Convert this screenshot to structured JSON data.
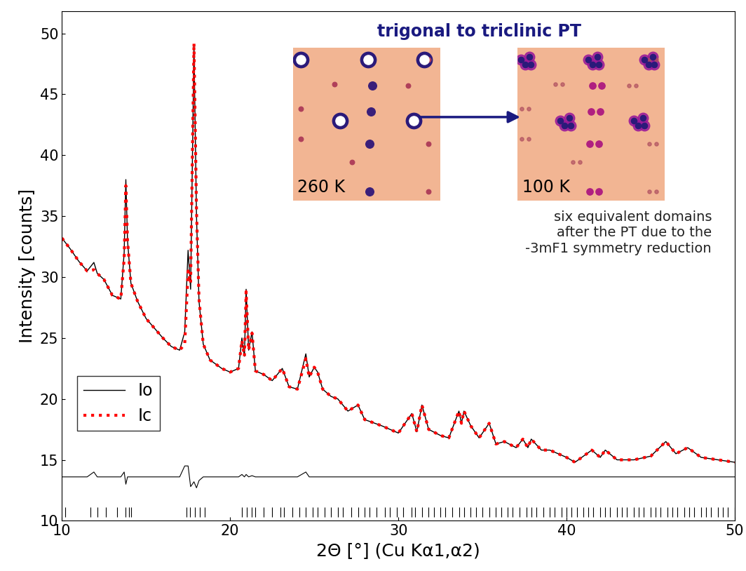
{
  "chart_data": {
    "type": "line",
    "x_label": "2Θ [°] (Cu Kα1,α2)",
    "y_label": "Intensity [counts]",
    "xlim": [
      10,
      50
    ],
    "xticks": [
      10,
      20,
      30,
      40,
      50
    ],
    "ylim": [
      10,
      51.8
    ],
    "yticks": [
      10,
      15,
      20,
      25,
      30,
      35,
      40,
      45,
      50
    ],
    "grid": false,
    "legend": "lower left",
    "x": [
      10.0,
      10.5,
      11.0,
      11.5,
      11.9,
      12.1,
      12.5,
      13.0,
      13.5,
      13.7,
      13.8,
      13.9,
      14.1,
      14.5,
      15.0,
      15.5,
      16.0,
      16.5,
      17.0,
      17.3,
      17.5,
      17.65,
      17.85,
      18.0,
      18.15,
      18.4,
      18.8,
      19.5,
      20.0,
      20.5,
      20.7,
      20.85,
      20.95,
      21.1,
      21.3,
      21.5,
      22.0,
      22.5,
      23.1,
      23.5,
      24.0,
      24.5,
      24.7,
      25.0,
      25.2,
      25.5,
      26.0,
      26.4,
      27.0,
      27.6,
      28.0,
      29.0,
      30.0,
      30.8,
      31.1,
      31.4,
      31.8,
      32.5,
      33.0,
      33.6,
      33.75,
      33.9,
      34.3,
      34.8,
      35.4,
      35.8,
      36.3,
      37.0,
      37.4,
      37.7,
      37.9,
      38.5,
      39.0,
      40.0,
      40.5,
      41.5,
      42.0,
      42.3,
      43.0,
      44.0,
      45.0,
      45.9,
      46.5,
      47.2,
      48.0,
      49.0,
      50.0
    ],
    "series": [
      {
        "name": "Io",
        "color": "#000000",
        "line_style": "solid",
        "values": [
          33.2,
          32.3,
          31.3,
          30.5,
          31.2,
          30.3,
          29.8,
          28.5,
          28.2,
          32.0,
          38.0,
          33.0,
          29.5,
          28.0,
          26.6,
          25.8,
          25.0,
          24.3,
          24.0,
          25.5,
          32.2,
          29.0,
          49.0,
          35.0,
          28.0,
          24.5,
          23.2,
          22.5,
          22.2,
          22.5,
          25.0,
          23.5,
          29.0,
          24.0,
          25.5,
          22.3,
          22.0,
          21.5,
          22.5,
          21.0,
          20.8,
          23.7,
          21.8,
          22.6,
          22.2,
          20.8,
          20.2,
          20.0,
          19.0,
          19.5,
          18.3,
          17.8,
          17.2,
          18.8,
          17.3,
          19.5,
          17.5,
          17.0,
          16.8,
          19.0,
          18.0,
          19.0,
          17.8,
          16.8,
          18.0,
          16.3,
          16.5,
          16.0,
          16.7,
          16.0,
          16.7,
          15.8,
          15.8,
          15.2,
          14.8,
          15.8,
          15.2,
          15.8,
          15.0,
          15.0,
          15.3,
          16.5,
          15.5,
          16.0,
          15.2,
          15.0,
          14.8
        ]
      },
      {
        "name": "Ic",
        "color": "#ff0000",
        "line_style": "dotted",
        "values": [
          33.2,
          32.3,
          31.3,
          30.5,
          30.6,
          30.3,
          29.8,
          28.5,
          28.2,
          31.5,
          37.5,
          33.0,
          29.5,
          28.0,
          26.6,
          25.8,
          25.0,
          24.3,
          24.0,
          24.5,
          30.5,
          29.5,
          49.2,
          35.5,
          28.2,
          24.5,
          23.2,
          22.5,
          22.2,
          22.5,
          24.8,
          23.5,
          28.8,
          24.0,
          25.4,
          22.3,
          22.0,
          21.5,
          22.5,
          21.0,
          20.8,
          23.3,
          21.8,
          22.6,
          22.2,
          20.8,
          20.2,
          20.0,
          19.0,
          19.5,
          18.3,
          17.8,
          17.2,
          18.8,
          17.3,
          19.5,
          17.5,
          17.0,
          16.8,
          19.0,
          18.0,
          19.0,
          17.8,
          16.8,
          18.0,
          16.3,
          16.5,
          16.0,
          16.7,
          16.0,
          16.7,
          15.8,
          15.8,
          15.2,
          14.8,
          15.8,
          15.2,
          15.8,
          15.0,
          15.0,
          15.3,
          16.5,
          15.5,
          16.0,
          15.2,
          15.0,
          14.8
        ]
      }
    ],
    "difference": {
      "color": "#000000",
      "values": [
        13.6,
        13.6,
        13.6,
        13.6,
        14.0,
        13.6,
        13.6,
        13.6,
        13.6,
        14.0,
        13.0,
        13.6,
        13.6,
        13.6,
        13.6,
        13.6,
        13.6,
        13.6,
        13.6,
        14.5,
        14.5,
        12.8,
        13.2,
        12.7,
        13.3,
        13.6,
        13.6,
        13.6,
        13.6,
        13.6,
        13.8,
        13.6,
        13.8,
        13.6,
        13.7,
        13.6,
        13.6,
        13.6,
        13.6,
        13.6,
        13.6,
        14.0,
        13.6,
        13.6,
        13.6,
        13.6,
        13.6,
        13.6,
        13.6,
        13.6,
        13.6,
        13.6,
        13.6,
        13.6,
        13.6,
        13.6,
        13.6,
        13.6,
        13.6,
        13.6,
        13.6,
        13.6,
        13.6,
        13.6,
        13.6,
        13.6,
        13.6,
        13.6,
        13.6,
        13.6,
        13.6,
        13.6,
        13.6,
        13.6,
        13.6,
        13.6,
        13.6,
        13.6,
        13.6,
        13.6,
        13.6,
        13.6,
        13.6,
        13.6,
        13.6,
        13.6,
        13.6
      ]
    },
    "reflections": [
      10.2,
      11.7,
      12.1,
      12.6,
      13.3,
      13.8,
      14.0,
      14.1,
      17.4,
      17.6,
      17.9,
      18.2,
      18.5,
      20.7,
      21.0,
      21.3,
      21.5,
      22.0,
      22.5,
      23.0,
      23.2,
      23.7,
      24.1,
      24.5,
      24.9,
      25.2,
      25.6,
      26.0,
      26.4,
      26.7,
      27.2,
      27.6,
      28.0,
      28.3,
      28.7,
      29.2,
      29.5,
      29.9,
      30.3,
      30.8,
      31.0,
      31.4,
      31.8,
      32.1,
      32.5,
      32.8,
      33.2,
      33.6,
      33.9,
      34.3,
      34.6,
      35.0,
      35.4,
      35.8,
      36.1,
      36.5,
      36.8,
      37.2,
      37.6,
      37.9,
      38.2,
      38.6,
      39.0,
      39.3,
      39.7,
      40.0,
      40.3,
      40.6,
      41.0,
      41.3,
      41.6,
      42.0,
      42.3,
      42.6,
      43.0,
      43.3,
      43.6,
      44.0,
      44.3,
      44.6,
      45.0,
      45.3,
      45.6,
      46.0,
      46.3,
      46.6,
      47.0,
      47.3,
      47.6,
      48.0,
      48.3,
      48.6,
      49.0,
      49.3,
      49.6,
      50.0
    ],
    "annotations": {
      "inset_title": "trigonal to triclinic PT",
      "left_image": "260 K",
      "right_image": "100 K",
      "note": "six equivalent domains\nafter the PT due to the\n-3mF1 symmetry reduction"
    }
  }
}
